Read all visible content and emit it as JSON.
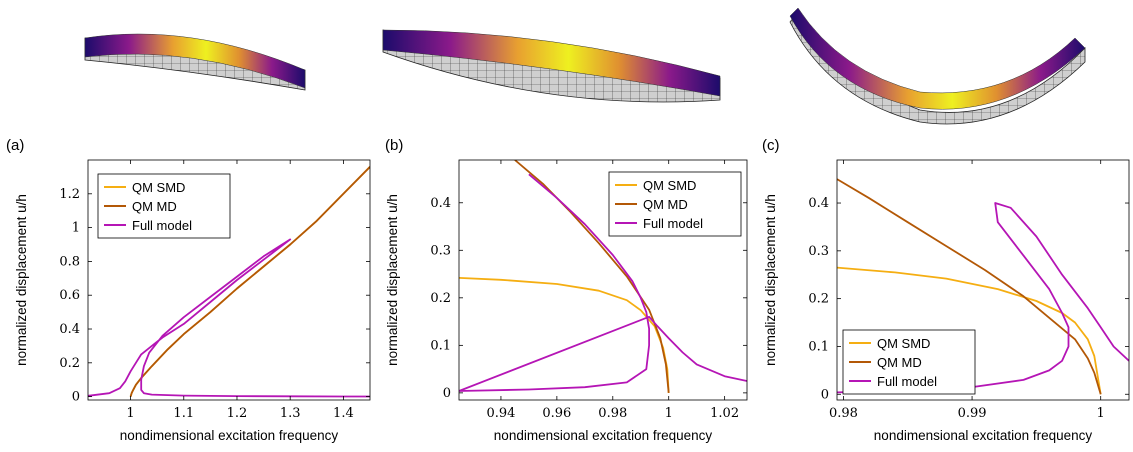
{
  "colors": {
    "qm_smd": "#f5ae12",
    "qm_md": "#b35806",
    "full_model": "#b515b5"
  },
  "chart_data": [
    {
      "label": "(a)",
      "type": "line",
      "xlabel": "nondimensional excitation frequency",
      "ylabel": "normalized displacement u/h",
      "xlim": [
        0.92,
        1.45
      ],
      "ylim": [
        -0.02,
        1.4
      ],
      "xticks": [
        1,
        1.1,
        1.2,
        1.3,
        1.4
      ],
      "xtick_labels": [
        "1",
        "1.1",
        "1.2",
        "1.3",
        "1.4"
      ],
      "yticks": [
        0,
        0.2,
        0.4,
        0.6,
        0.8,
        1,
        1.2
      ],
      "ytick_labels": [
        "0",
        "0.2",
        "0.4",
        "0.6",
        "0.8",
        "1",
        "1.2"
      ],
      "legend_position": "top-left",
      "series": [
        {
          "name": "QM SMD",
          "color_key": "qm_smd",
          "x": [
            1.0,
            1.002,
            1.005,
            1.01,
            1.02,
            1.04,
            1.07,
            1.1,
            1.15,
            1.2,
            1.25,
            1.3,
            1.35,
            1.4,
            1.45
          ],
          "y": [
            0.0,
            0.02,
            0.04,
            0.07,
            0.11,
            0.18,
            0.28,
            0.37,
            0.5,
            0.64,
            0.77,
            0.9,
            1.04,
            1.2,
            1.36
          ]
        },
        {
          "name": "QM MD",
          "color_key": "qm_md",
          "x": [
            1.0,
            1.002,
            1.005,
            1.01,
            1.02,
            1.04,
            1.07,
            1.1,
            1.15,
            1.2,
            1.25,
            1.3,
            1.35,
            1.4,
            1.45
          ],
          "y": [
            0.0,
            0.02,
            0.04,
            0.07,
            0.11,
            0.18,
            0.28,
            0.37,
            0.5,
            0.64,
            0.77,
            0.9,
            1.04,
            1.2,
            1.36
          ]
        },
        {
          "name": "Full model",
          "color_key": "full_model",
          "x": [
            0.92,
            0.96,
            0.98,
            0.99,
            1.0,
            1.01,
            1.02,
            1.04,
            1.06,
            1.1,
            1.15,
            1.2,
            1.25,
            1.3,
            1.25,
            1.2,
            1.15,
            1.1,
            1.06,
            1.035,
            1.025,
            1.02,
            1.02,
            1.025,
            1.04,
            1.1,
            1.2,
            1.3,
            1.4,
            1.45
          ],
          "y": [
            0.005,
            0.02,
            0.05,
            0.09,
            0.15,
            0.2,
            0.25,
            0.3,
            0.35,
            0.43,
            0.56,
            0.69,
            0.81,
            0.93,
            0.83,
            0.71,
            0.59,
            0.47,
            0.36,
            0.26,
            0.18,
            0.1,
            0.04,
            0.02,
            0.012,
            0.006,
            0.003,
            0.002,
            0.001,
            0.001
          ]
        }
      ]
    },
    {
      "label": "(b)",
      "type": "line",
      "xlabel": "nondimensional excitation frequency",
      "ylabel": "normalized displacement u/h",
      "xlim": [
        0.925,
        1.028
      ],
      "ylim": [
        -0.015,
        0.49
      ],
      "xticks": [
        0.94,
        0.96,
        0.98,
        1,
        1.02
      ],
      "xtick_labels": [
        "0.94",
        "0.96",
        "0.98",
        "1",
        "1.02"
      ],
      "yticks": [
        0,
        0.1,
        0.2,
        0.3,
        0.4
      ],
      "ytick_labels": [
        "0",
        "0.1",
        "0.2",
        "0.3",
        "0.4"
      ],
      "legend_position": "top-right",
      "series": [
        {
          "name": "QM SMD",
          "color_key": "qm_smd",
          "x": [
            0.925,
            0.94,
            0.96,
            0.975,
            0.985,
            0.99,
            0.995,
            0.998,
            0.9995,
            1.0
          ],
          "y": [
            0.242,
            0.238,
            0.229,
            0.215,
            0.195,
            0.174,
            0.14,
            0.095,
            0.05,
            0.0
          ]
        },
        {
          "name": "QM MD",
          "color_key": "qm_md",
          "x": [
            0.945,
            0.955,
            0.965,
            0.975,
            0.985,
            0.993,
            0.997,
            0.999,
            1.0
          ],
          "y": [
            0.49,
            0.44,
            0.38,
            0.315,
            0.245,
            0.175,
            0.115,
            0.06,
            0.0
          ]
        },
        {
          "name": "Full model",
          "color_key": "full_model",
          "x": [
            0.95,
            0.96,
            0.97,
            0.98,
            0.987,
            0.99,
            0.992,
            0.993,
            0.993,
            0.992,
            0.985,
            0.97,
            0.95,
            0.925,
            0.993,
            0.996,
            1.0,
            1.005,
            1.01,
            1.02,
            1.028
          ],
          "y": [
            0.46,
            0.41,
            0.355,
            0.29,
            0.235,
            0.2,
            0.17,
            0.135,
            0.1,
            0.05,
            0.022,
            0.012,
            0.007,
            0.004,
            0.16,
            0.14,
            0.115,
            0.085,
            0.06,
            0.035,
            0.025
          ]
        }
      ]
    },
    {
      "label": "(c)",
      "type": "line",
      "xlabel": "nondimensional excitation frequency",
      "ylabel": "normalized displacement u/h",
      "xlim": [
        0.9795,
        1.0022
      ],
      "ylim": [
        -0.012,
        0.49
      ],
      "xticks": [
        0.98,
        0.99,
        1
      ],
      "xtick_labels": [
        "0.98",
        "0.99",
        "1"
      ],
      "yticks": [
        0,
        0.1,
        0.2,
        0.3,
        0.4
      ],
      "ytick_labels": [
        "0",
        "0.1",
        "0.2",
        "0.3",
        "0.4"
      ],
      "legend_position": "bottom-left",
      "series": [
        {
          "name": "QM SMD",
          "color_key": "qm_smd",
          "x": [
            0.9795,
            0.984,
            0.988,
            0.992,
            0.995,
            0.997,
            0.998,
            0.999,
            0.9995,
            1.0
          ],
          "y": [
            0.265,
            0.255,
            0.242,
            0.22,
            0.195,
            0.17,
            0.15,
            0.115,
            0.08,
            0.0
          ]
        },
        {
          "name": "QM MD",
          "color_key": "qm_md",
          "x": [
            0.9795,
            0.982,
            0.985,
            0.988,
            0.991,
            0.994,
            0.996,
            0.998,
            0.999,
            0.9995,
            1.0
          ],
          "y": [
            0.45,
            0.41,
            0.36,
            0.31,
            0.26,
            0.205,
            0.16,
            0.115,
            0.075,
            0.045,
            0.0
          ]
        },
        {
          "name": "Full model",
          "color_key": "full_model",
          "x": [
            0.9795,
            0.985,
            0.99,
            0.994,
            0.996,
            0.997,
            0.9975,
            0.9975,
            0.997,
            0.996,
            0.994,
            0.992,
            0.9918,
            0.993,
            0.995,
            0.997,
            0.999,
            1.0,
            1.001,
            1.0022
          ],
          "y": [
            0.004,
            0.008,
            0.015,
            0.03,
            0.05,
            0.07,
            0.1,
            0.14,
            0.17,
            0.22,
            0.29,
            0.36,
            0.4,
            0.39,
            0.33,
            0.25,
            0.18,
            0.14,
            0.1,
            0.07
          ]
        }
      ]
    }
  ]
}
